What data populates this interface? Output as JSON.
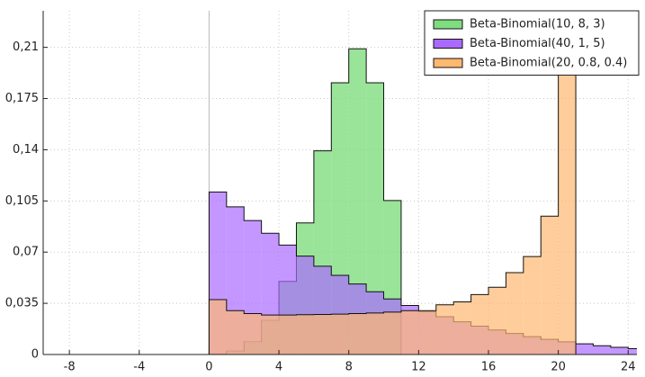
{
  "chart_data": {
    "type": "step-histogram",
    "xlim": [
      -9.5,
      24.5
    ],
    "ylim": [
      0,
      0.235
    ],
    "xticks": [
      -8,
      -4,
      0,
      4,
      8,
      12,
      16,
      20,
      24
    ],
    "yticks": [
      0,
      {
        "value": 0.035,
        "label": "0,035"
      },
      {
        "value": 0.07,
        "label": "0,07"
      },
      {
        "value": 0.105,
        "label": "0,105"
      },
      {
        "value": 0.14,
        "label": "0,14"
      },
      {
        "value": 0.175,
        "label": "0,175"
      },
      {
        "value": 0.21,
        "label": "0,21"
      }
    ],
    "grid": true,
    "legend": "top-right",
    "series": [
      {
        "name": "Beta-Binomial(10, 8, 3)",
        "color": "#7fdd7f",
        "values": [
          0.0004,
          0.0024,
          0.0088,
          0.0234,
          0.05,
          0.09,
          0.1393,
          0.1858,
          0.209,
          0.1858,
          0.1053
        ]
      },
      {
        "name": "Beta-Binomial(40, 1, 5)",
        "color": "#a96bff",
        "values": [
          0.1111,
          0.101,
          0.0916,
          0.0829,
          0.0748,
          0.0673,
          0.0604,
          0.0541,
          0.0482,
          0.0429,
          0.038,
          0.0335,
          0.0294,
          0.0258,
          0.0224,
          0.0194,
          0.0168,
          0.0144,
          0.0122,
          0.0104,
          0.0087,
          0.0073,
          0.006,
          0.0049,
          0.004
        ]
      },
      {
        "name": "Beta-Binomial(20, 0.8, 0.4)",
        "color": "#ffb870",
        "values": [
          0.0375,
          0.03,
          0.028,
          0.027,
          0.027,
          0.0272,
          0.0274,
          0.0276,
          0.028,
          0.0284,
          0.029,
          0.03,
          0.03,
          0.034,
          0.036,
          0.041,
          0.046,
          0.056,
          0.067,
          0.0946,
          0.35
        ]
      }
    ]
  }
}
